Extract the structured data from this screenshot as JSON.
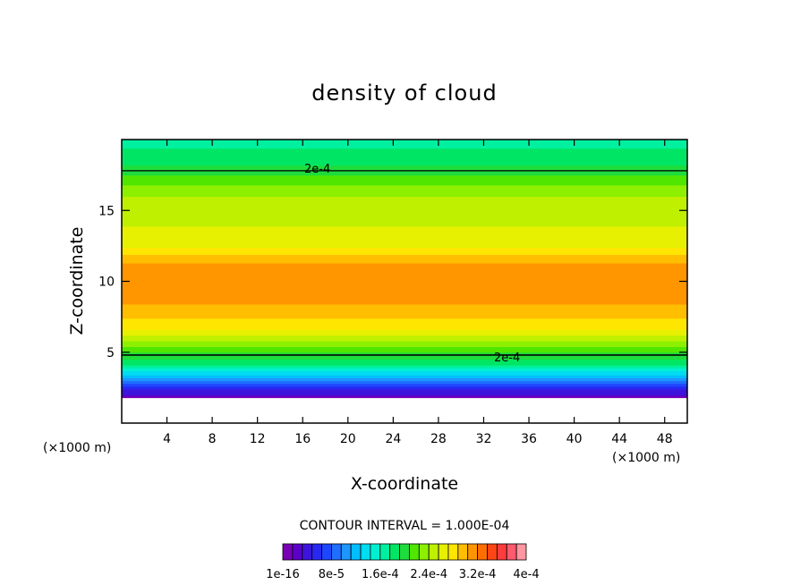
{
  "chart_data": {
    "type": "heatmap",
    "title": "density of cloud",
    "xlabel": "X-coordinate",
    "ylabel": "Z-coordinate",
    "x_unit": "(×1000 m)",
    "z_unit": "(×1000 m)",
    "xlim": [
      0,
      50
    ],
    "ylim": [
      0,
      20
    ],
    "x_ticks": [
      4,
      8,
      12,
      16,
      20,
      24,
      28,
      32,
      36,
      40,
      44,
      48
    ],
    "y_ticks": [
      5,
      10,
      15
    ],
    "contour_interval_text": "CONTOUR INTERVAL = 1.000E-04",
    "contour_labels": [
      "2e-4",
      "2e-4"
    ],
    "colorbar": {
      "tick_labels": [
        "1e-16",
        "8e-5",
        "1.6e-4",
        "2.4e-4",
        "3.2e-4",
        "4e-4"
      ],
      "tick_values": [
        0,
        8e-05,
        0.00016,
        0.00024,
        0.00032,
        0.0004
      ],
      "range": [
        0,
        0.0004
      ],
      "colors": [
        "#7800b4",
        "#5a00c8",
        "#3c14dc",
        "#2828f0",
        "#1e46ff",
        "#1e6eff",
        "#1e96ff",
        "#00beff",
        "#00dcf0",
        "#00f0d2",
        "#00f0a0",
        "#00e664",
        "#1edc3c",
        "#50e600",
        "#8cf000",
        "#bef000",
        "#e6f000",
        "#ffe600",
        "#ffbe00",
        "#ff9600",
        "#ff6e00",
        "#ff4614",
        "#ff3c3c",
        "#ff5a6e",
        "#ff96a0"
      ]
    },
    "profile_z": [
      0,
      1.8,
      2.0,
      2.4,
      2.8,
      3.2,
      3.6,
      4.0,
      4.4,
      4.8,
      5.2,
      5.6,
      6.0,
      6.5,
      7.0,
      7.5,
      8.0,
      9.0,
      10.0,
      11.0,
      11.5,
      12.0,
      12.5,
      13.0,
      13.5,
      14.0,
      15.0,
      16.0,
      17.0,
      18.0,
      19.0,
      20.0
    ],
    "profile_density": [
      null,
      1e-05,
      3e-05,
      5e-05,
      8e-05,
      0.00011,
      0.00014,
      0.00017,
      0.00019,
      0.0002,
      0.000215,
      0.00023,
      0.00025,
      0.00027,
      0.00028,
      0.00029,
      0.0003,
      0.00031,
      0.00031,
      0.00031,
      0.0003,
      0.000285,
      0.00027,
      0.000265,
      0.00026,
      0.000255,
      0.00025,
      0.00024,
      0.00022,
      0.000195,
      0.00018,
      0.00017
    ],
    "contour_levels_drawn": [
      0.0002
    ]
  }
}
